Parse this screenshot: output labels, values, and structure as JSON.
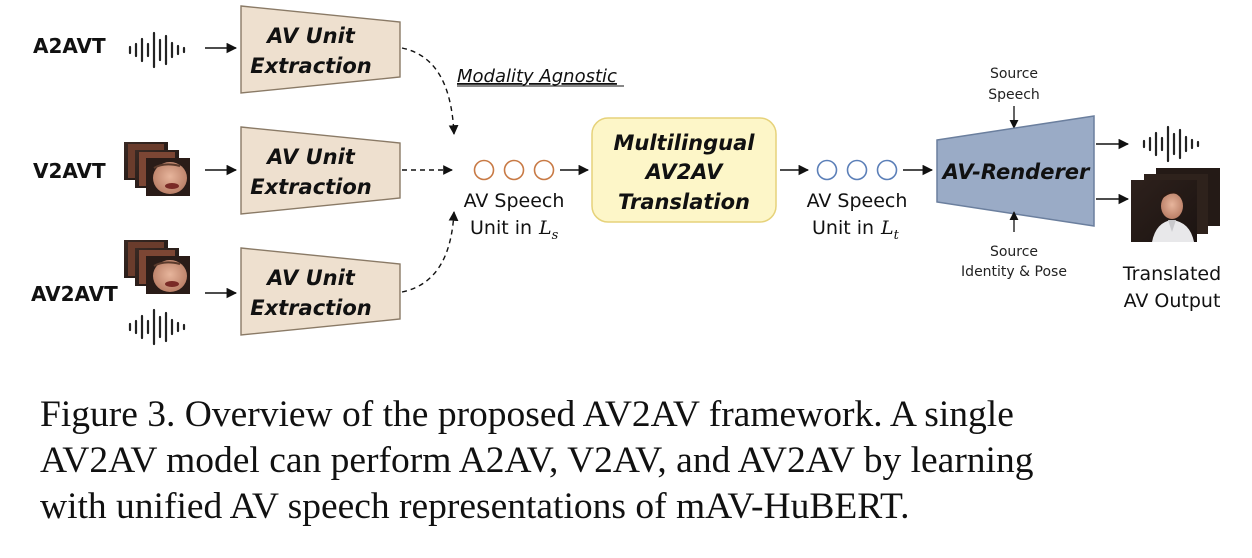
{
  "inputs": [
    {
      "label": "A2AVT",
      "modality": "audio"
    },
    {
      "label": "V2AVT",
      "modality": "video"
    },
    {
      "label": "AV2AVT",
      "modality": "audio-video"
    }
  ],
  "extraction": {
    "line1": "AV Unit",
    "line2": "Extraction"
  },
  "modality_note": "Modality Agnostic",
  "source_units": {
    "line1": "AV Speech",
    "line2": "Unit in",
    "sym": "L",
    "sub": "s"
  },
  "translation": {
    "line1": "Multilingual",
    "line2": "AV2AV",
    "line3": "Translation"
  },
  "target_units": {
    "line1": "AV Speech",
    "line2": "Unit in",
    "sym": "L",
    "sub": "t"
  },
  "renderer": {
    "label": "AV-Renderer",
    "top_input": {
      "line1": "Source",
      "line2": "Speech"
    },
    "bottom_input": {
      "line1": "Source",
      "line2": "Identity & Pose"
    }
  },
  "output": {
    "line1": "Translated",
    "line2": "AV Output"
  },
  "caption": {
    "line1": "Figure 3. Overview of the proposed AV2AV framework. A single",
    "line2": "AV2AV model can perform A2AV, V2AV, and AV2AV by learning",
    "line3": "with unified AV speech representations of mAV-HuBERT."
  },
  "colors": {
    "extract_fill": "#eee0cf",
    "extract_stroke": "#8a7a66",
    "translate_fill": "#fdf6c8",
    "translate_stroke": "#e6d27a",
    "renderer_fill": "#9aabc6",
    "renderer_stroke": "#6b7f9e",
    "source_circle": "#c87a45",
    "target_circle": "#5b7fb8"
  }
}
